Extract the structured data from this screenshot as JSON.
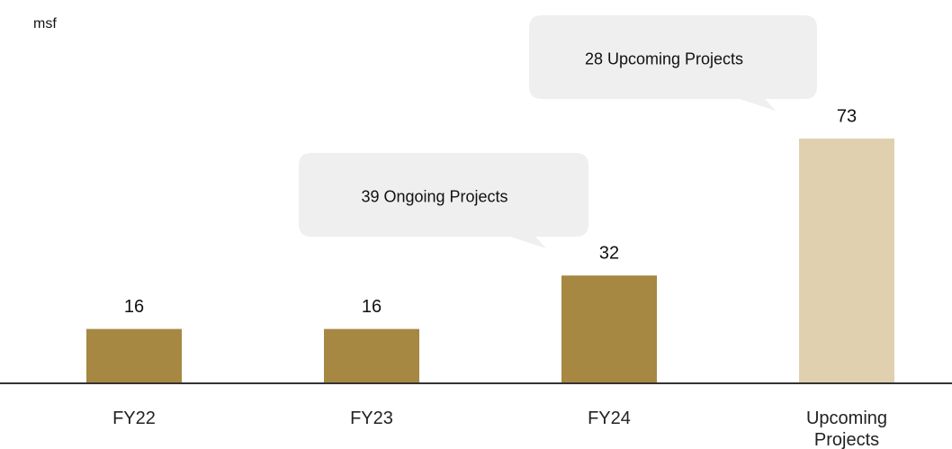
{
  "chart_data": {
    "type": "bar",
    "y_label": "msf",
    "categories": [
      "FY22",
      "FY23",
      "FY24",
      "Upcoming Projects"
    ],
    "values": [
      16,
      16,
      32,
      73
    ],
    "colors": [
      "#a68843",
      "#a68843",
      "#a68843",
      "#e0d0b0"
    ],
    "annotations": [
      {
        "text": "39 Ongoing Projects"
      },
      {
        "text": "28 Upcoming Projects"
      }
    ]
  }
}
